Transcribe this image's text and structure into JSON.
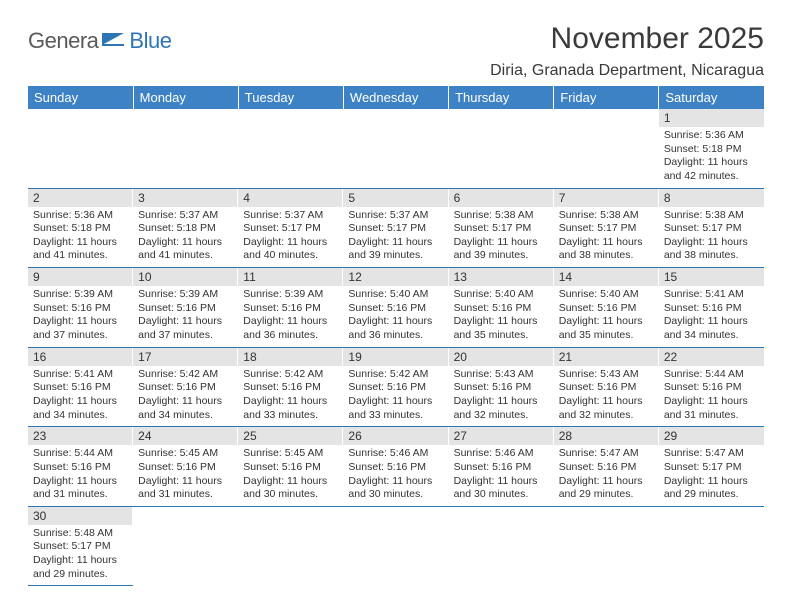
{
  "logo": {
    "part1": "Genera",
    "part2": "Blue"
  },
  "title": "November 2025",
  "location": "Diria, Granada Department, Nicaragua",
  "colors": {
    "header_bg": "#3d82c4",
    "header_text": "#ffffff",
    "daynum_bg": "#e4e4e4",
    "border": "#2e75b6",
    "logo_gray": "#5a5a5a",
    "logo_blue": "#2e75b6"
  },
  "weekdays": [
    "Sunday",
    "Monday",
    "Tuesday",
    "Wednesday",
    "Thursday",
    "Friday",
    "Saturday"
  ],
  "weeks": [
    [
      null,
      null,
      null,
      null,
      null,
      null,
      {
        "n": "1",
        "sunrise": "5:36 AM",
        "sunset": "5:18 PM",
        "daylight": "11 hours and 42 minutes."
      }
    ],
    [
      {
        "n": "2",
        "sunrise": "5:36 AM",
        "sunset": "5:18 PM",
        "daylight": "11 hours and 41 minutes."
      },
      {
        "n": "3",
        "sunrise": "5:37 AM",
        "sunset": "5:18 PM",
        "daylight": "11 hours and 41 minutes."
      },
      {
        "n": "4",
        "sunrise": "5:37 AM",
        "sunset": "5:17 PM",
        "daylight": "11 hours and 40 minutes."
      },
      {
        "n": "5",
        "sunrise": "5:37 AM",
        "sunset": "5:17 PM",
        "daylight": "11 hours and 39 minutes."
      },
      {
        "n": "6",
        "sunrise": "5:38 AM",
        "sunset": "5:17 PM",
        "daylight": "11 hours and 39 minutes."
      },
      {
        "n": "7",
        "sunrise": "5:38 AM",
        "sunset": "5:17 PM",
        "daylight": "11 hours and 38 minutes."
      },
      {
        "n": "8",
        "sunrise": "5:38 AM",
        "sunset": "5:17 PM",
        "daylight": "11 hours and 38 minutes."
      }
    ],
    [
      {
        "n": "9",
        "sunrise": "5:39 AM",
        "sunset": "5:16 PM",
        "daylight": "11 hours and 37 minutes."
      },
      {
        "n": "10",
        "sunrise": "5:39 AM",
        "sunset": "5:16 PM",
        "daylight": "11 hours and 37 minutes."
      },
      {
        "n": "11",
        "sunrise": "5:39 AM",
        "sunset": "5:16 PM",
        "daylight": "11 hours and 36 minutes."
      },
      {
        "n": "12",
        "sunrise": "5:40 AM",
        "sunset": "5:16 PM",
        "daylight": "11 hours and 36 minutes."
      },
      {
        "n": "13",
        "sunrise": "5:40 AM",
        "sunset": "5:16 PM",
        "daylight": "11 hours and 35 minutes."
      },
      {
        "n": "14",
        "sunrise": "5:40 AM",
        "sunset": "5:16 PM",
        "daylight": "11 hours and 35 minutes."
      },
      {
        "n": "15",
        "sunrise": "5:41 AM",
        "sunset": "5:16 PM",
        "daylight": "11 hours and 34 minutes."
      }
    ],
    [
      {
        "n": "16",
        "sunrise": "5:41 AM",
        "sunset": "5:16 PM",
        "daylight": "11 hours and 34 minutes."
      },
      {
        "n": "17",
        "sunrise": "5:42 AM",
        "sunset": "5:16 PM",
        "daylight": "11 hours and 34 minutes."
      },
      {
        "n": "18",
        "sunrise": "5:42 AM",
        "sunset": "5:16 PM",
        "daylight": "11 hours and 33 minutes."
      },
      {
        "n": "19",
        "sunrise": "5:42 AM",
        "sunset": "5:16 PM",
        "daylight": "11 hours and 33 minutes."
      },
      {
        "n": "20",
        "sunrise": "5:43 AM",
        "sunset": "5:16 PM",
        "daylight": "11 hours and 32 minutes."
      },
      {
        "n": "21",
        "sunrise": "5:43 AM",
        "sunset": "5:16 PM",
        "daylight": "11 hours and 32 minutes."
      },
      {
        "n": "22",
        "sunrise": "5:44 AM",
        "sunset": "5:16 PM",
        "daylight": "11 hours and 31 minutes."
      }
    ],
    [
      {
        "n": "23",
        "sunrise": "5:44 AM",
        "sunset": "5:16 PM",
        "daylight": "11 hours and 31 minutes."
      },
      {
        "n": "24",
        "sunrise": "5:45 AM",
        "sunset": "5:16 PM",
        "daylight": "11 hours and 31 minutes."
      },
      {
        "n": "25",
        "sunrise": "5:45 AM",
        "sunset": "5:16 PM",
        "daylight": "11 hours and 30 minutes."
      },
      {
        "n": "26",
        "sunrise": "5:46 AM",
        "sunset": "5:16 PM",
        "daylight": "11 hours and 30 minutes."
      },
      {
        "n": "27",
        "sunrise": "5:46 AM",
        "sunset": "5:16 PM",
        "daylight": "11 hours and 30 minutes."
      },
      {
        "n": "28",
        "sunrise": "5:47 AM",
        "sunset": "5:16 PM",
        "daylight": "11 hours and 29 minutes."
      },
      {
        "n": "29",
        "sunrise": "5:47 AM",
        "sunset": "5:17 PM",
        "daylight": "11 hours and 29 minutes."
      }
    ],
    [
      {
        "n": "30",
        "sunrise": "5:48 AM",
        "sunset": "5:17 PM",
        "daylight": "11 hours and 29 minutes."
      },
      null,
      null,
      null,
      null,
      null,
      null
    ]
  ],
  "labels": {
    "sunrise": "Sunrise: ",
    "sunset": "Sunset: ",
    "daylight": "Daylight: "
  }
}
